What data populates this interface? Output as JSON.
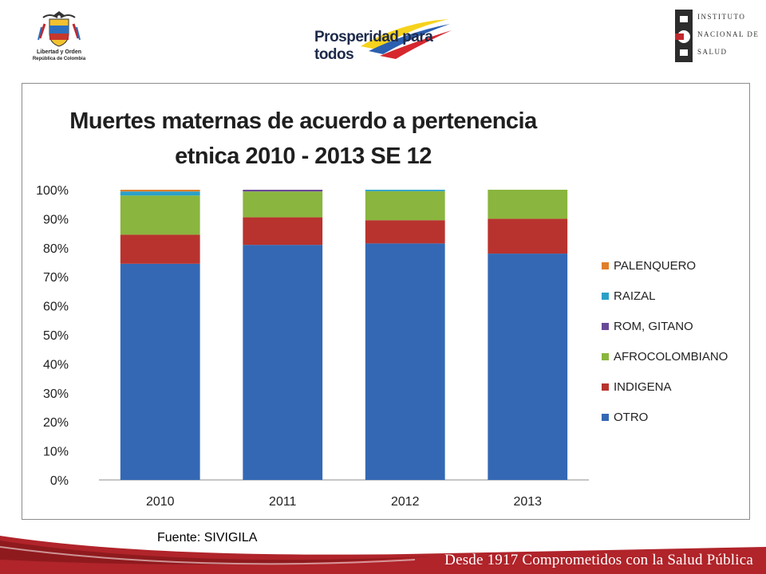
{
  "header": {
    "escudo_line1": "Libertad y Orden",
    "escudo_line2": "República de Colombia",
    "prosperidad": "Prosperidad para todos",
    "instituto_lines": [
      "INSTITUTO",
      "NACIONAL DE",
      "SALUD"
    ]
  },
  "footer": {
    "fuente": "Fuente: SIVIGILA",
    "slogan": "Desde 1917 Comprometidos con la Salud Pública"
  },
  "colors": {
    "otro": "#3468b4",
    "indigena": "#b8332e",
    "afrocolombiano": "#8ab53e",
    "rom": "#6a4898",
    "raizal": "#2aa0c8",
    "palenquero": "#e07f2a",
    "footer_red": "#b0242a"
  },
  "chart_data": {
    "type": "bar",
    "stacked": true,
    "title_lines": [
      "Muertes maternas de acuerdo a pertenencia",
      "etnica 2010 - 2013 SE 12"
    ],
    "categories": [
      "2010",
      "2011",
      "2012",
      "2013"
    ],
    "yticks": [
      "0%",
      "10%",
      "20%",
      "30%",
      "40%",
      "50%",
      "60%",
      "70%",
      "80%",
      "90%",
      "100%"
    ],
    "ylim": [
      0,
      100
    ],
    "legend_position": "right",
    "series": [
      {
        "name": "OTRO",
        "values": [
          74.5,
          81,
          81.5,
          78
        ],
        "color": "#3468b4"
      },
      {
        "name": "INDIGENA",
        "values": [
          10,
          9.5,
          8,
          12
        ],
        "color": "#b8332e"
      },
      {
        "name": "AFROCOLOMBIANO",
        "values": [
          13.5,
          8.9,
          10,
          10
        ],
        "color": "#8ab53e"
      },
      {
        "name": "ROM, GITANO",
        "values": [
          0,
          0.6,
          0,
          0
        ],
        "color": "#6a4898"
      },
      {
        "name": "RAIZAL",
        "values": [
          1.4,
          0,
          0.5,
          0
        ],
        "color": "#2aa0c8"
      },
      {
        "name": "PALENQUERO",
        "values": [
          0.6,
          0,
          0,
          0
        ],
        "color": "#e07f2a"
      }
    ]
  }
}
